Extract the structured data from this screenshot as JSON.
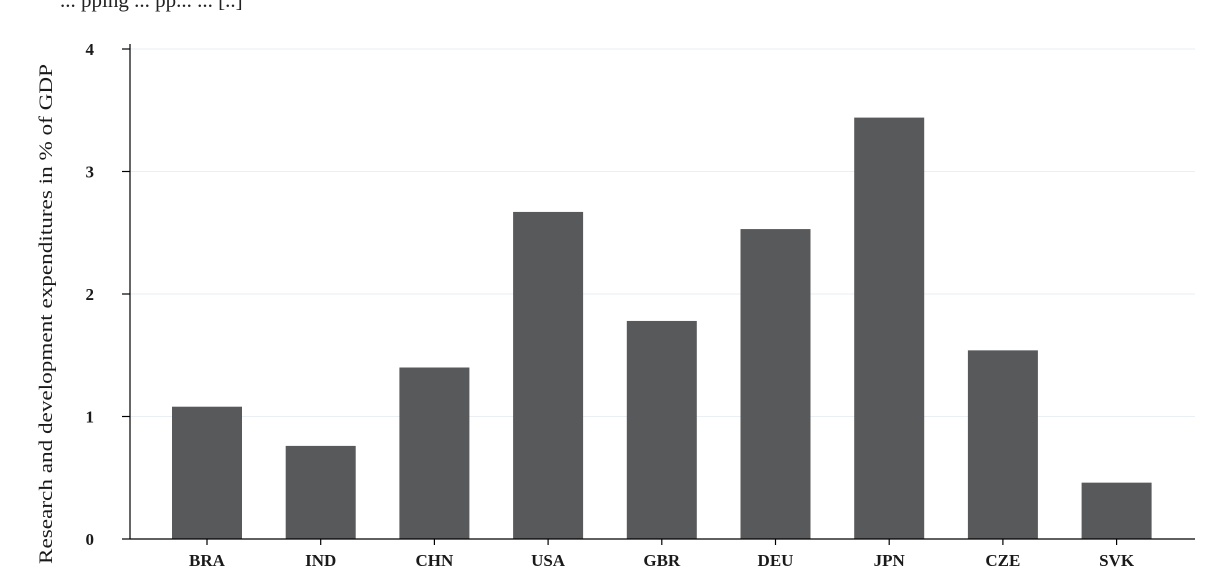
{
  "caption_fragment": "... pping ... pp... ... [..]",
  "chart_data": {
    "type": "bar",
    "title": "",
    "xlabel": "",
    "ylabel": "Research and development expenditures in % of GDP",
    "categories": [
      "BRA",
      "IND",
      "CHN",
      "USA",
      "GBR",
      "DEU",
      "JPN",
      "CZE",
      "SVK"
    ],
    "values": [
      1.08,
      0.76,
      1.4,
      2.67,
      1.78,
      2.53,
      3.44,
      1.54,
      0.46
    ],
    "ylim": [
      0,
      4
    ],
    "yticks": [
      0,
      1,
      2,
      3,
      4
    ],
    "grid": true,
    "legend": "none",
    "bar_color": "#58595b",
    "grid_color": "#eaeff3"
  }
}
